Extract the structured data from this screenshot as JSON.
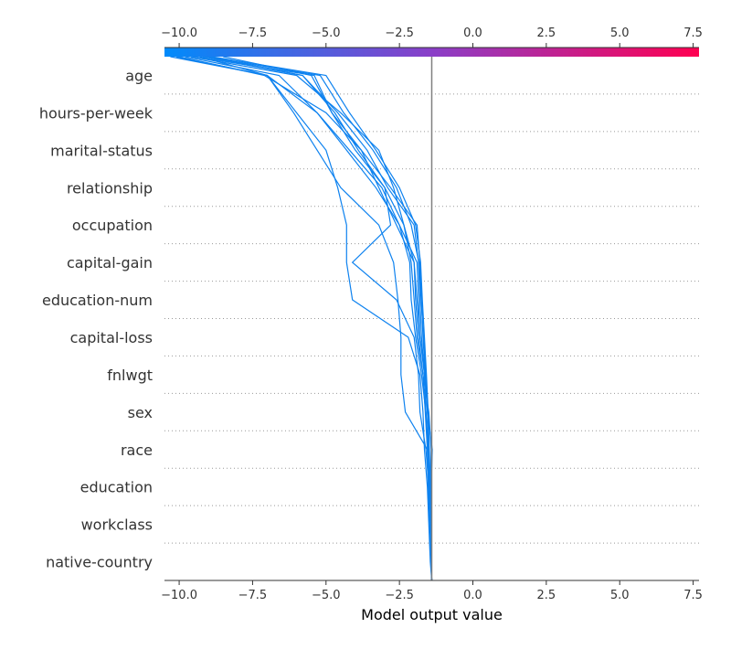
{
  "chart_data": {
    "type": "line",
    "chart_kind": "shap-decision-plot",
    "xlabel": "Model output value",
    "xlim": [
      -10.5,
      7.7
    ],
    "xticks": [
      -10.0,
      -7.5,
      -5.0,
      -2.5,
      0.0,
      2.5,
      5.0,
      7.5
    ],
    "xtick_labels": [
      "−10.0",
      "−7.5",
      "−5.0",
      "−2.5",
      "0.0",
      "2.5",
      "5.0",
      "7.5"
    ],
    "base_value": -1.4,
    "colorbar": {
      "low_color": "#008bfb",
      "mid_color": "#8a3fc8",
      "high_color": "#ff0051",
      "position": "top"
    },
    "line_color": "#0e82ef",
    "grid": "dotted horizontal per feature",
    "features": [
      "age",
      "hours-per-week",
      "marital-status",
      "relationship",
      "occupation",
      "capital-gain",
      "education-num",
      "capital-loss",
      "fnlwgt",
      "sex",
      "race",
      "education",
      "workclass",
      "native-country"
    ],
    "series": [
      {
        "values": [
          -1.4,
          -1.42,
          -1.43,
          -1.42,
          -1.38,
          -1.55,
          -1.6,
          -1.8,
          -1.9,
          -2.0,
          -2.6,
          -3.2,
          -3.8,
          -5.0,
          -7.1,
          -10.0
        ]
      },
      {
        "values": [
          -1.4,
          -1.42,
          -1.45,
          -1.45,
          -1.42,
          -1.5,
          -1.7,
          -1.9,
          -2.0,
          -2.1,
          -2.35,
          -2.7,
          -3.2,
          -4.5,
          -6.0,
          -9.6
        ]
      },
      {
        "values": [
          -1.4,
          -1.42,
          -1.45,
          -1.5,
          -1.52,
          -1.6,
          -1.75,
          -1.95,
          -2.1,
          -2.15,
          -2.5,
          -3.3,
          -4.3,
          -5.3,
          -7.0,
          -9.3
        ]
      },
      {
        "values": [
          -1.4,
          -1.42,
          -1.45,
          -1.5,
          -1.52,
          -1.6,
          -1.65,
          -1.8,
          -1.85,
          -1.9,
          -2.5,
          -3.1,
          -4.2,
          -5.3,
          -6.6,
          -9.8
        ]
      },
      {
        "values": [
          -1.4,
          -1.43,
          -1.45,
          -1.47,
          -1.55,
          -1.6,
          -1.65,
          -1.75,
          -1.8,
          -1.85,
          -2.0,
          -2.9,
          -3.6,
          -4.6,
          -5.8,
          -9.0
        ]
      },
      {
        "values": [
          -1.4,
          -1.42,
          -1.47,
          -1.52,
          -1.55,
          -1.62,
          -1.7,
          -1.85,
          -1.95,
          -2.0,
          -2.35,
          -3.0,
          -3.9,
          -4.7,
          -5.8,
          -9.2
        ]
      },
      {
        "values": [
          -1.4,
          -1.42,
          -1.45,
          -1.5,
          -1.55,
          -2.3,
          -2.45,
          -2.45,
          -2.55,
          -2.7,
          -3.2,
          -4.5,
          -5.3,
          -6.1,
          -7.0,
          -10.1
        ]
      },
      {
        "values": [
          -1.4,
          -1.45,
          -1.5,
          -1.55,
          -1.65,
          -1.7,
          -1.8,
          -2.2,
          -4.1,
          -4.3,
          -4.3,
          -4.6,
          -5.0,
          -6.0,
          -7.0,
          -10.3
        ]
      },
      {
        "values": [
          -1.4,
          -1.42,
          -1.45,
          -1.5,
          -1.6,
          -1.8,
          -1.85,
          -2.0,
          -2.6,
          -4.1,
          -2.8,
          -3.0,
          -4.0,
          -4.8,
          -5.5,
          -8.5
        ]
      },
      {
        "values": [
          -1.4,
          -1.43,
          -1.45,
          -1.47,
          -1.5,
          -1.55,
          -1.62,
          -1.7,
          -1.75,
          -1.8,
          -1.9,
          -2.8,
          -3.8,
          -4.8,
          -5.4,
          -9.5
        ]
      },
      {
        "values": [
          -1.4,
          -1.42,
          -1.43,
          -1.45,
          -1.48,
          -1.52,
          -1.58,
          -1.65,
          -1.72,
          -1.78,
          -1.95,
          -2.5,
          -3.3,
          -4.2,
          -5.0,
          -8.9
        ]
      },
      {
        "values": [
          -1.4,
          -1.42,
          -1.44,
          -1.46,
          -1.49,
          -1.54,
          -1.6,
          -1.68,
          -1.76,
          -1.84,
          -2.1,
          -2.6,
          -3.4,
          -4.4,
          -5.2,
          -9.1
        ]
      }
    ]
  }
}
